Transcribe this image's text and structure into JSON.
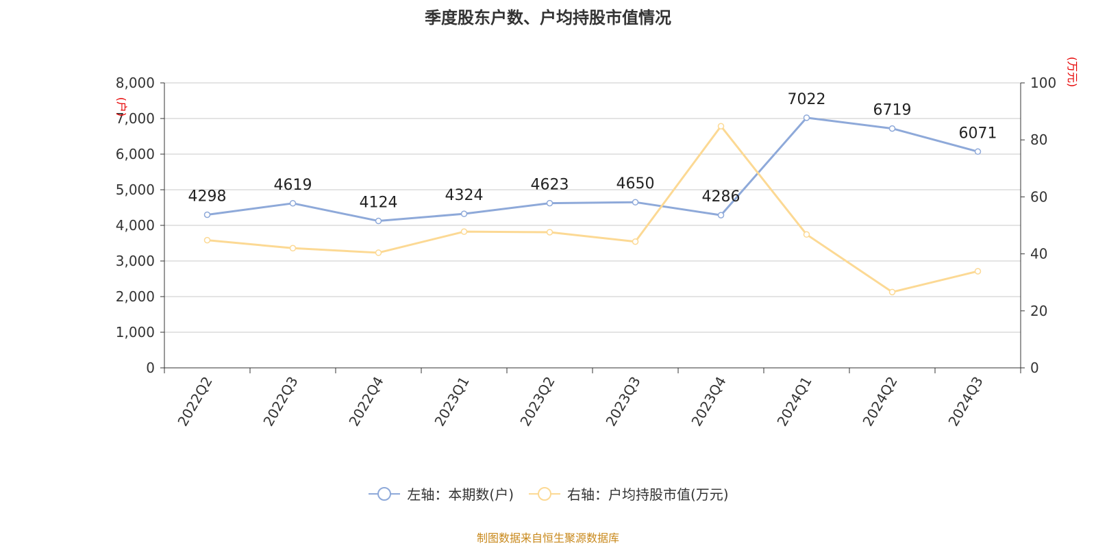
{
  "title": "季度股东户数、户均持股市值情况",
  "legend": {
    "left_label": "左轴：本期数(户)",
    "right_label": "右轴：户均持股市值(万元)"
  },
  "source": "制图数据来自恒生聚源数据库",
  "chart_data": {
    "type": "line",
    "categories": [
      "2022Q2",
      "2022Q3",
      "2022Q4",
      "2023Q1",
      "2023Q2",
      "2023Q3",
      "2023Q4",
      "2024Q1",
      "2024Q2",
      "2024Q3"
    ],
    "left_axis": {
      "unit": "(户)",
      "min": 0,
      "max": 8000,
      "ticks": [
        "0",
        "1,000",
        "2,000",
        "3,000",
        "4,000",
        "5,000",
        "6,000",
        "7,000",
        "8,000"
      ]
    },
    "right_axis": {
      "unit": "(万元)",
      "min": 0,
      "max": 100,
      "ticks": [
        "0",
        "20",
        "40",
        "60",
        "80",
        "100"
      ]
    },
    "series": [
      {
        "name": "左轴：本期数(户)",
        "axis": "left",
        "color": "#8ea9d9",
        "values": [
          4298,
          4619,
          4124,
          4324,
          4623,
          4650,
          4286,
          7022,
          6719,
          6071
        ],
        "show_labels": true
      },
      {
        "name": "右轴：户均持股市值(万元)",
        "axis": "right",
        "color": "#fcd994",
        "values": [
          44.8,
          42,
          40.4,
          47.8,
          47.6,
          44.3,
          84.8,
          46.8,
          26.6,
          33.9
        ],
        "show_labels": false
      }
    ],
    "grid": true,
    "legend_position": "bottom"
  }
}
